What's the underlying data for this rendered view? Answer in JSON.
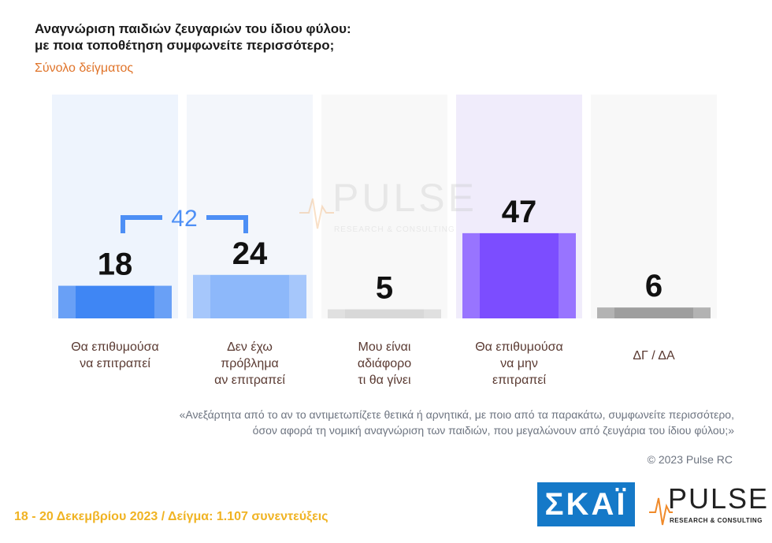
{
  "header": {
    "title_line1": "Αναγνώριση παιδιών ζευγαριών του  ίδιου φύλου:",
    "title_line2": "με ποια τοποθέτηση συμφωνείτε περισσότερο;",
    "subtitle": "Σύνολο δείγματος"
  },
  "chart_data": {
    "type": "bar",
    "categories": [
      [
        "Θα επιθυμούσα",
        "να επιτραπεί"
      ],
      [
        "Δεν έχω",
        "πρόβλημα",
        "αν επιτραπεί"
      ],
      [
        "Μου είναι",
        "αδιάφορο",
        "τι θα γίνει"
      ],
      [
        "Θα επιθυμούσα",
        "να μην",
        "επιτραπεί"
      ],
      [
        "ΔΓ / ΔΑ"
      ]
    ],
    "values": [
      18,
      24,
      5,
      47,
      6
    ],
    "colors": [
      "#3f86f4",
      "#8db8fa",
      "#d8d8d8",
      "#7c4dff",
      "#9e9e9e"
    ],
    "bracket": {
      "label": "42",
      "from": 0,
      "to": 1,
      "color": "#4d8ff5"
    },
    "ylim": [
      0,
      100
    ]
  },
  "watermark": {
    "word": "PULSE",
    "sub": "RESEARCH & CONSULTING"
  },
  "note": {
    "line1": "«Ανεξάρτητα από το αν το αντιμετωπίζετε θετικά ή αρνητικά, με ποιο από τα παρακάτω, συμφωνείτε περισσότερο,",
    "line2": "όσον αφορά τη νομική αναγνώριση των παιδιών, που μεγαλώνουν από ζευγάρια του ίδιου φύλου;»"
  },
  "copyright": "© 2023 Pulse RC",
  "footer": "18 - 20 Δεκεμβρίου  2023  /  Δείγμα:  1.107 συνεντεύξεις",
  "logos": {
    "skai": "ΣΚΑΪ",
    "pulse": "PULSE",
    "pulse_sub": "RESEARCH & CONSULTING"
  }
}
